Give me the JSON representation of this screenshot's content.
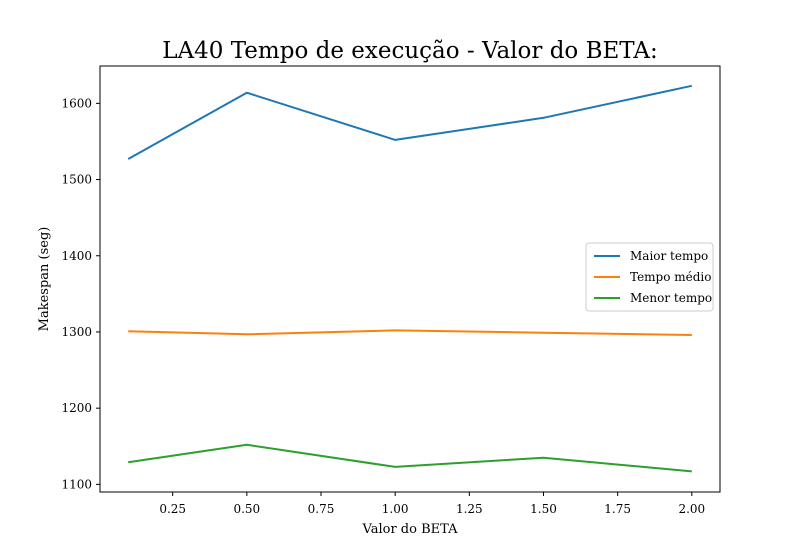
{
  "chart_data": {
    "type": "line",
    "title": "LA40 Tempo de execução - Valor do BETA:",
    "xlabel": "Valor do BETA",
    "ylabel": "Makespan (seg)",
    "x": [
      0.1,
      0.5,
      1.0,
      1.5,
      2.0
    ],
    "xlim": [
      0.005,
      2.095
    ],
    "ylim": [
      1090,
      1649
    ],
    "xticks": [
      0.25,
      0.5,
      0.75,
      1.0,
      1.25,
      1.5,
      1.75,
      2.0
    ],
    "xtick_labels": [
      "0.25",
      "0.50",
      "0.75",
      "1.00",
      "1.25",
      "1.50",
      "1.75",
      "2.00"
    ],
    "yticks": [
      1100,
      1200,
      1300,
      1400,
      1500,
      1600
    ],
    "ytick_labels": [
      "1100",
      "1200",
      "1300",
      "1400",
      "1500",
      "1600"
    ],
    "grid": false,
    "legend_position": "center-right",
    "series": [
      {
        "name": "Maior tempo",
        "color": "#1f77b4",
        "values": [
          1527,
          1614,
          1552,
          1581,
          1623
        ]
      },
      {
        "name": "Tempo médio",
        "color": "#ff7f0e",
        "values": [
          1301,
          1297,
          1302,
          1299,
          1296
        ]
      },
      {
        "name": "Menor tempo",
        "color": "#2ca02c",
        "values": [
          1129,
          1152,
          1123,
          1135,
          1117
        ]
      }
    ]
  }
}
